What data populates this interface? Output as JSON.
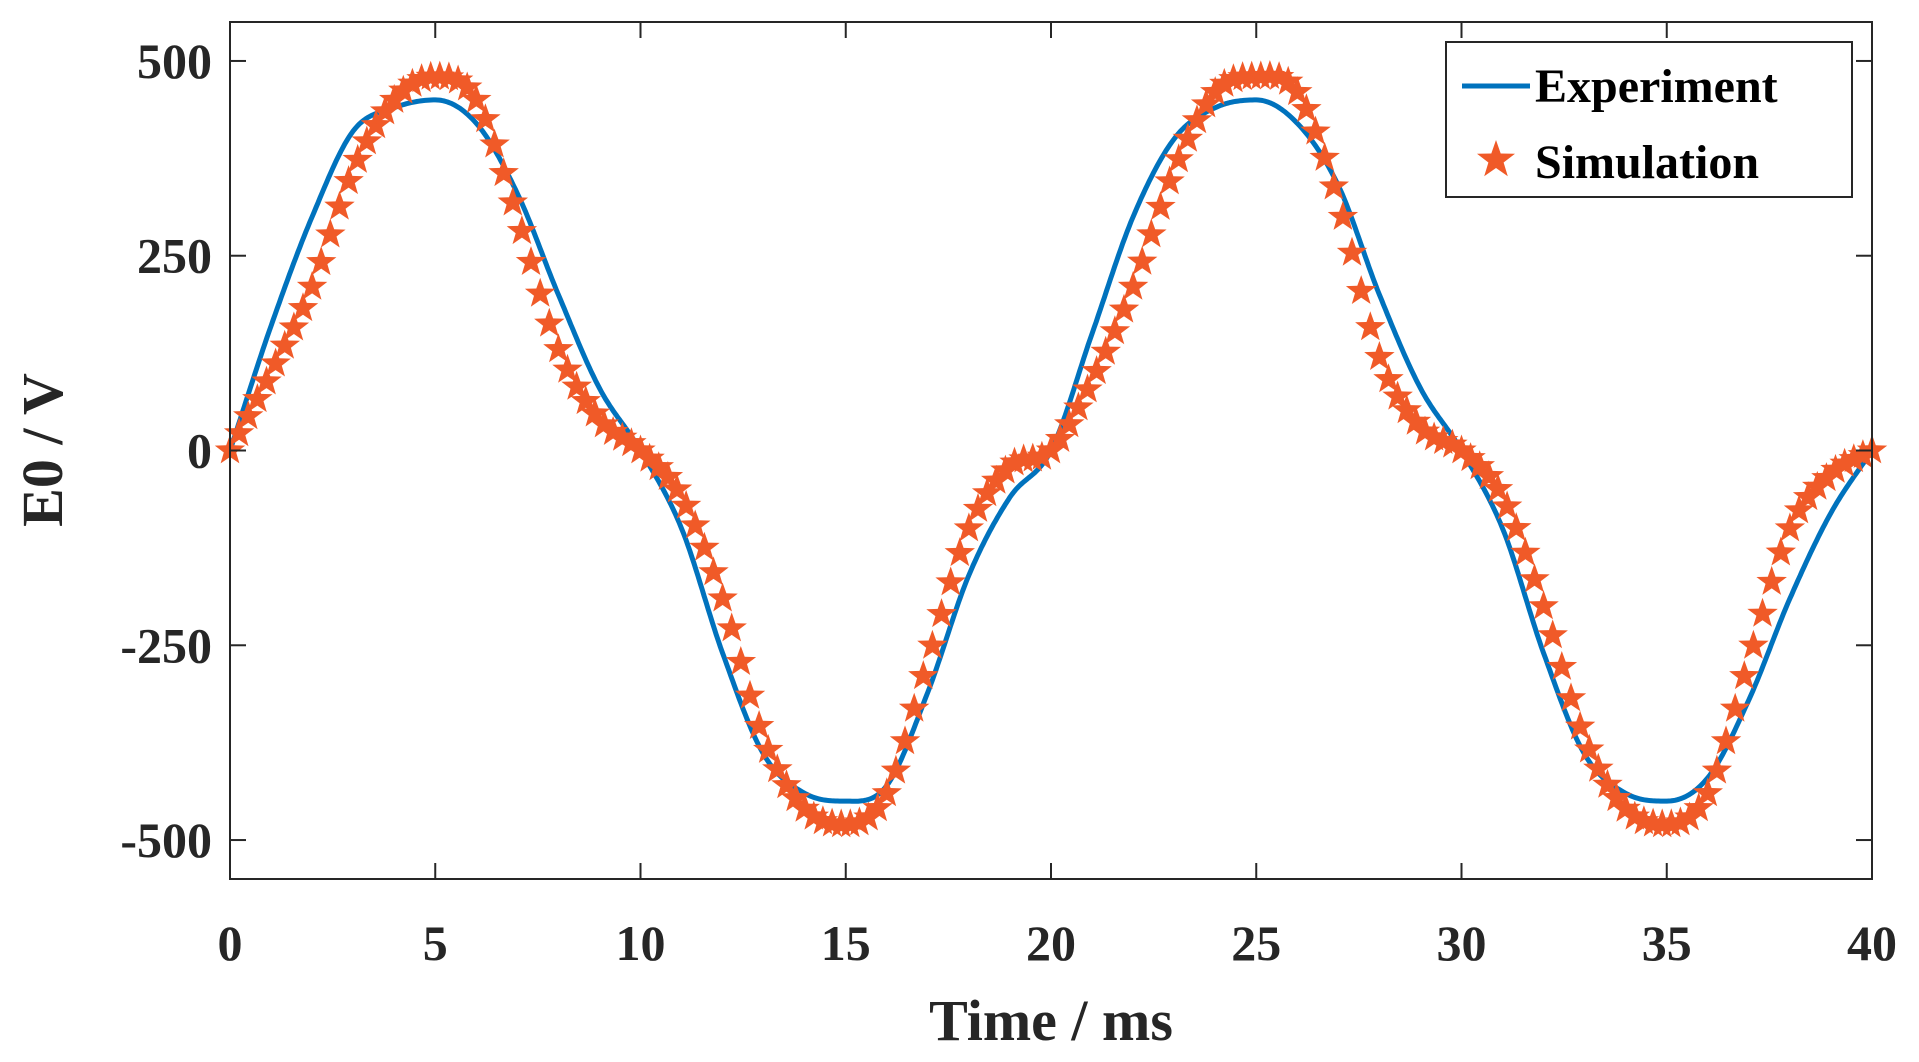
{
  "chart_data": {
    "type": "line",
    "title": "",
    "xlabel": "Time / ms",
    "ylabel": "E0 / V",
    "xlim": [
      0,
      40
    ],
    "ylim": [
      -550,
      550
    ],
    "xticks": [
      0,
      5,
      10,
      15,
      20,
      25,
      30,
      35,
      40
    ],
    "yticks": [
      500,
      250,
      0,
      -250,
      -500
    ],
    "xtick_labels": [
      "0",
      "5",
      "10",
      "15",
      "20",
      "25",
      "30",
      "35",
      "40"
    ],
    "ytick_labels": [
      "500",
      "250",
      "0",
      "-250",
      "-500"
    ],
    "grid": false,
    "legend_position": "top-right",
    "series": [
      {
        "name": "Experiment",
        "color": "#0072BD",
        "style": "line",
        "x": [
          0,
          1,
          2,
          3,
          4,
          5,
          6,
          7,
          8,
          9,
          10,
          11,
          12,
          13,
          14,
          15,
          16,
          17,
          18,
          19,
          20,
          21,
          22,
          23,
          24,
          25,
          26,
          27,
          28,
          29,
          30,
          31,
          32,
          33,
          34,
          35,
          36,
          37,
          38,
          39,
          40
        ],
        "y": [
          0,
          160,
          300,
          410,
          440,
          450,
          420,
          330,
          200,
          80,
          0,
          -100,
          -260,
          -390,
          -440,
          -450,
          -430,
          -310,
          -160,
          -60,
          0,
          150,
          300,
          400,
          440,
          450,
          420,
          340,
          200,
          80,
          0,
          -100,
          -260,
          -390,
          -440,
          -450,
          -420,
          -320,
          -190,
          -80,
          0
        ]
      },
      {
        "name": "Simulation",
        "color": "#F05A28",
        "style": "star-markers",
        "x": [
          0,
          1,
          2,
          3,
          4,
          5,
          6,
          7,
          8,
          9,
          10,
          11,
          12,
          13,
          14,
          15,
          16,
          17,
          18,
          19,
          20,
          21,
          22,
          23,
          24,
          25,
          26,
          27,
          28,
          29,
          30,
          31,
          32,
          33,
          34,
          35,
          36,
          37,
          38,
          39,
          40
        ],
        "y": [
          0,
          100,
          210,
          360,
          450,
          480,
          450,
          300,
          130,
          40,
          0,
          -60,
          -190,
          -370,
          -460,
          -480,
          -440,
          -270,
          -100,
          -20,
          0,
          90,
          210,
          360,
          460,
          480,
          460,
          320,
          120,
          30,
          0,
          -60,
          -200,
          -370,
          -460,
          -480,
          -440,
          -270,
          -100,
          -30,
          0
        ]
      }
    ]
  }
}
